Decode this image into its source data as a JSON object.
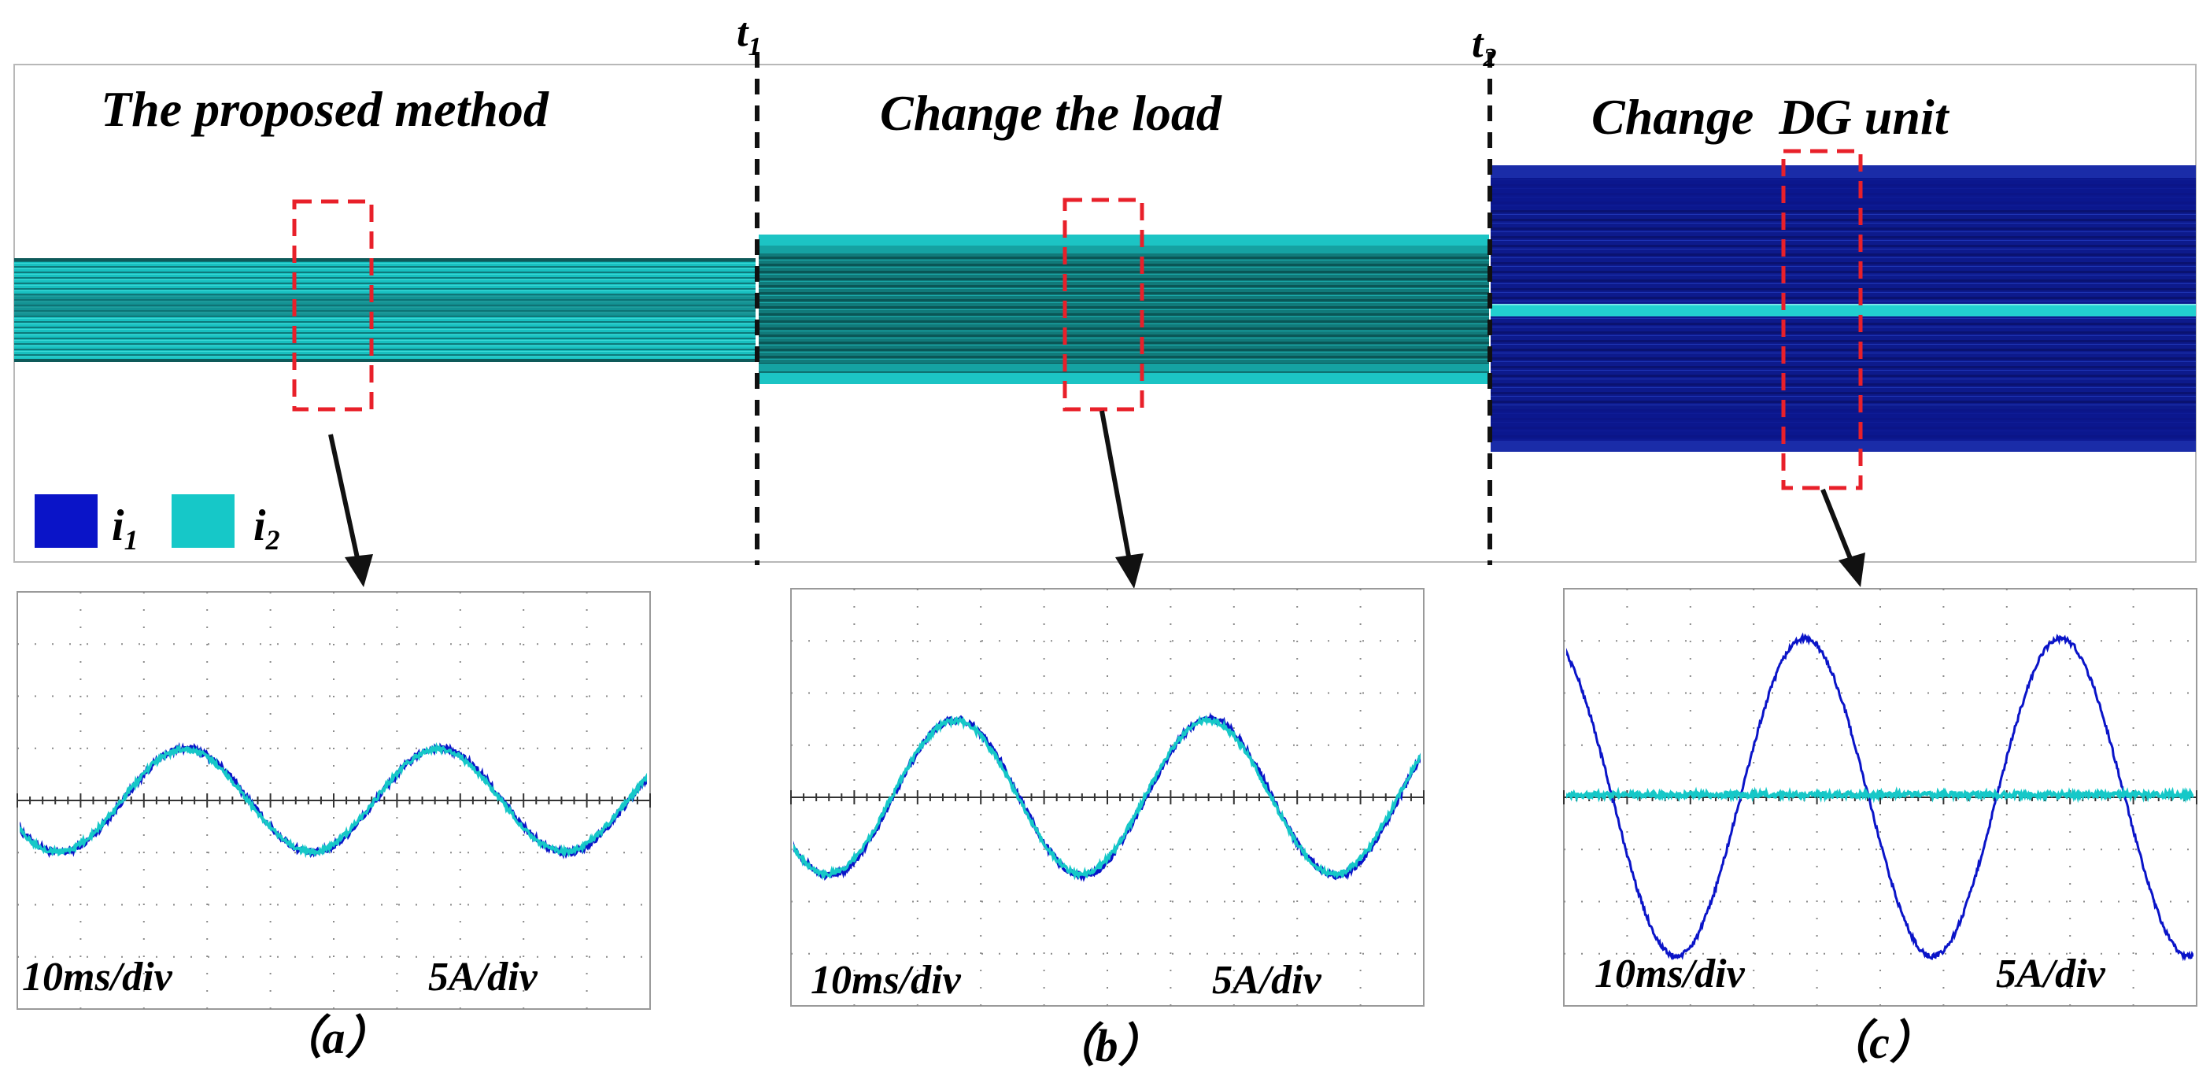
{
  "colors": {
    "i1": "#0a14c8",
    "i2": "#16c8c8",
    "band_dark": "#0e5a5a",
    "envelope_deep": "#0a1278",
    "envelope_mid": "#1a2ca8",
    "highlight_box": "#e8202a",
    "axis_line": "#333333"
  },
  "markers": {
    "t1": "t",
    "t1_sub": "1",
    "t2": "t",
    "t2_sub": "2"
  },
  "overview": {
    "sections": [
      {
        "title": "The proposed method"
      },
      {
        "title": "Change the load"
      },
      {
        "title": "Change  DG unit"
      }
    ],
    "legend": [
      {
        "symbol": "i",
        "sub": "1",
        "series": "i1"
      },
      {
        "symbol": "i",
        "sub": "2",
        "series": "i2"
      }
    ]
  },
  "chart_data": [
    {
      "type": "line",
      "title": "(a)",
      "panel_label": "（a）",
      "scale": {
        "time": "10ms/div",
        "current": "5A/div"
      },
      "grid": true,
      "divisions": {
        "x": 10,
        "y": 8
      },
      "xlim": [
        0,
        100
      ],
      "ylim": [
        -4,
        4
      ],
      "series": [
        {
          "name": "i1",
          "waveform": "sine",
          "amplitude": 1.0,
          "period": 40,
          "phase_deg": 210,
          "offset": 0,
          "noise": 0.06
        },
        {
          "name": "i2",
          "waveform": "sine",
          "amplitude": 0.98,
          "period": 40,
          "phase_deg": 212,
          "offset": 0,
          "noise": 0.05
        }
      ]
    },
    {
      "type": "line",
      "title": "(b)",
      "panel_label": "（b）",
      "scale": {
        "time": "10ms/div",
        "current": "5A/div"
      },
      "grid": true,
      "divisions": {
        "x": 10,
        "y": 8
      },
      "xlim": [
        0,
        100
      ],
      "ylim": [
        -4,
        4
      ],
      "series": [
        {
          "name": "i1",
          "waveform": "sine",
          "amplitude": 1.5,
          "period": 40,
          "phase_deg": 215,
          "offset": 0,
          "noise": 0.06
        },
        {
          "name": "i2",
          "waveform": "sine",
          "amplitude": 1.47,
          "period": 40,
          "phase_deg": 217,
          "offset": 0,
          "noise": 0.05
        }
      ]
    },
    {
      "type": "line",
      "title": "(c)",
      "panel_label": "（c）",
      "scale": {
        "time": "10ms/div",
        "current": "5A/div"
      },
      "grid": true,
      "divisions": {
        "x": 10,
        "y": 8
      },
      "xlim": [
        0,
        100
      ],
      "ylim": [
        -4,
        4
      ],
      "series": [
        {
          "name": "i1",
          "waveform": "sine",
          "amplitude": 3.05,
          "period": 40.5,
          "phase_deg": 112,
          "offset": 0,
          "noise": 0.05
        },
        {
          "name": "i2",
          "waveform": "sine",
          "amplitude": 0.0,
          "period": 40,
          "phase_deg": 0,
          "offset": 0.05,
          "noise": 0.05
        }
      ]
    }
  ]
}
